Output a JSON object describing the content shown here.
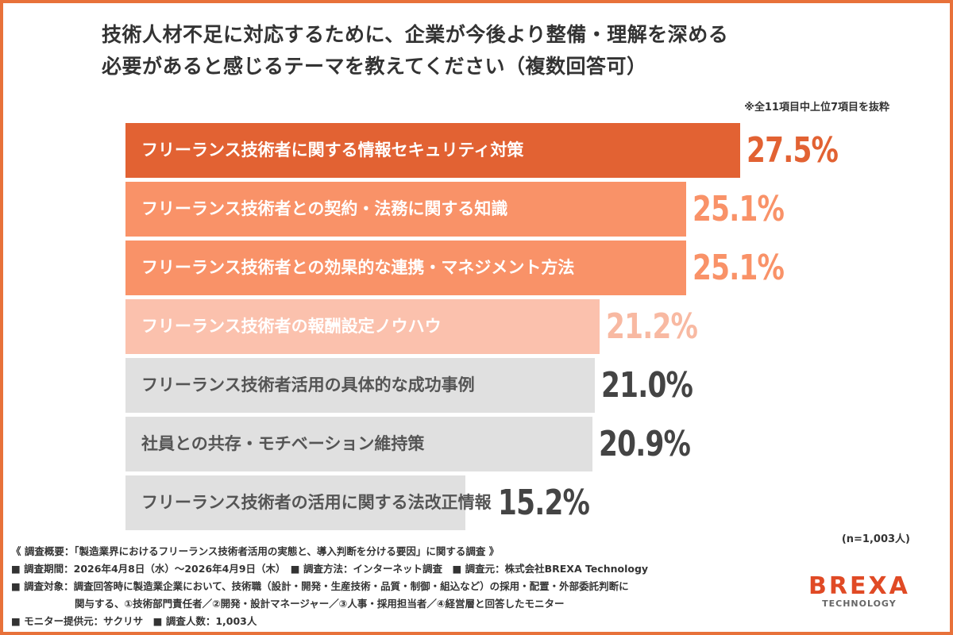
{
  "title_lines": [
    "技術人材不足に対応するために、企業が今後より整備・理解を深める",
    "必要があると感じるテーマを教えてください（複数回答可）"
  ],
  "note": "※全11項目中上位7項目を抜粋",
  "sample_size": "(n=1,003人)",
  "chart_data": {
    "type": "bar",
    "orientation": "horizontal",
    "title": "技術人材不足に対応するために、企業が今後より整備・理解を深める必要があると感じるテーマを教えてください（複数回答可）",
    "unit": "%",
    "xlim": [
      0,
      27.5
    ],
    "grid": false,
    "categories": [
      "フリーランス技術者に関する情報セキュリティ対策",
      "フリーランス技術者との契約・法務に関する知識",
      "フリーランス技術者との効果的な連携・マネジメント方法",
      "フリーランス技術者の報酬設定ノウハウ",
      "フリーランス技術者活用の具体的な成功事例",
      "社員との共存・モチベーション維持策",
      "フリーランス技術者の活用に関する法改正情報"
    ],
    "values": [
      27.5,
      25.1,
      25.1,
      21.2,
      21.0,
      20.9,
      15.2
    ],
    "value_labels": [
      "27.5%",
      "25.1%",
      "25.1%",
      "21.2%",
      "21.0%",
      "20.9%",
      "15.2%"
    ],
    "bar_colors": [
      "#E26233",
      "#F99268",
      "#F99268",
      "#FBC1AD",
      "#E0E0E0",
      "#E0E0E0",
      "#E0E0E0"
    ],
    "label_colors": [
      "#FFFFFF",
      "#FFFFFF",
      "#FFFFFF",
      "#FFFFFF",
      "#555555",
      "#555555",
      "#555555"
    ],
    "value_colors": [
      "#E26233",
      "#F99268",
      "#F99268",
      "#F8B9A2",
      "#444444",
      "#444444",
      "#444444"
    ]
  },
  "footer": {
    "survey_name": "《 調査概要：「製造業界におけるフリーランス技術者活用の実態と、導入判断を分ける要因」に関する調査 》",
    "line1": "■ 調査期間：2026年4月8日（水）〜2026年4月9日（木）　■ 調査方法：インターネット調査　■ 調査元：株式会社BREXA Technology",
    "line2": "■ 調査対象：調査回答時に製造業企業において、技術職（設計・開発・生産技術・品質・制御・組込など）の採用・配置・外部委託判断に",
    "line3": "関与する、①技術部門責任者／②開発・設計マネージャー／③人事・採用担当者／④経営層と回答したモニター",
    "line4": "■ モニター提供元：サクリサ　■ 調査人数：1,003人"
  },
  "logo": {
    "main": "BREXA",
    "sub": "TECHNOLOGY"
  },
  "colors": {
    "frame": "#E8713A",
    "logo": "#E04A25"
  }
}
